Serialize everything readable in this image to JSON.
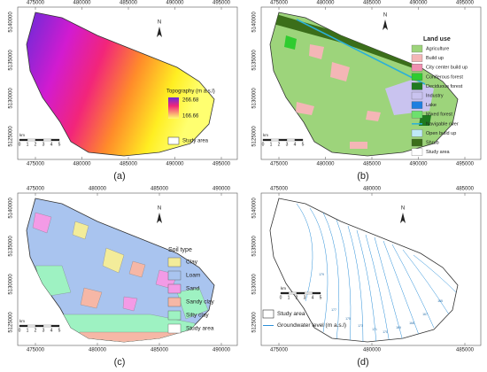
{
  "panels": [
    {
      "label": "(a)",
      "top_ticks": [
        "475000",
        "480000",
        "485000",
        "490000",
        "495000"
      ],
      "bottom_ticks": [
        "475000",
        "480000",
        "485000",
        "490000",
        "495000"
      ],
      "left_ticks": [
        "5140000",
        "5135000",
        "5130000",
        "5125000"
      ],
      "north": "N",
      "scale_unit": "km",
      "scale_labels": [
        "0",
        "1",
        "2",
        "3",
        "4",
        "5"
      ],
      "legend": {
        "title": "Topography (m a.s.l)",
        "max": "266.68",
        "min": "166.66",
        "items": [
          {
            "label": "Study area",
            "color": "#ffffff"
          }
        ]
      }
    },
    {
      "label": "(b)",
      "top_ticks": [
        "475000",
        "480000",
        "485000",
        "490000",
        "495000"
      ],
      "bottom_ticks": [
        "475000",
        "480000",
        "485000",
        "490000",
        "495000"
      ],
      "left_ticks": [
        "5140000",
        "5135000",
        "5130000",
        "5125000"
      ],
      "north": "N",
      "scale_unit": "km",
      "scale_labels": [
        "0",
        "1",
        "2",
        "3",
        "4",
        "5"
      ],
      "legend": {
        "title": "Land use",
        "items": [
          {
            "label": "Agriculture",
            "color": "#9dd47b"
          },
          {
            "label": "Build up",
            "color": "#f4b6b6"
          },
          {
            "label": "City center build up",
            "color": "#f08fb0"
          },
          {
            "label": "Coniferous forest",
            "color": "#2fcc2f"
          },
          {
            "label": "Deciduous forest",
            "color": "#1f7a1f"
          },
          {
            "label": "Industry",
            "color": "#c9c3ef"
          },
          {
            "label": "Lake",
            "color": "#1e7fe0"
          },
          {
            "label": "Mixed forest",
            "color": "#6ee06e"
          },
          {
            "label": "Navigable river",
            "color": "#2bb0d8"
          },
          {
            "label": "Open build up",
            "color": "#bfe9f7"
          },
          {
            "label": "Shrub",
            "color": "#3b6e1a"
          },
          {
            "label": "Study area",
            "color": "#ffffff"
          }
        ]
      }
    },
    {
      "label": "(c)",
      "top_ticks": [
        "475000",
        "480000",
        "485000",
        "490000"
      ],
      "bottom_ticks": [
        "475000",
        "480000",
        "485000",
        "490000"
      ],
      "left_ticks": [
        "5140000",
        "5135000",
        "5130000",
        "5125000"
      ],
      "north": "N",
      "scale_unit": "km",
      "scale_labels": [
        "0",
        "1",
        "2",
        "3",
        "4",
        "5"
      ],
      "legend": {
        "title": "Soil type",
        "items": [
          {
            "label": "Clay",
            "color": "#f3ec9a"
          },
          {
            "label": "Loam",
            "color": "#a9c4ef"
          },
          {
            "label": "Sand",
            "color": "#f39be6"
          },
          {
            "label": "Sandy clay",
            "color": "#f6b7a6"
          },
          {
            "label": "Silty clay",
            "color": "#9ef2c2"
          },
          {
            "label": "Study area",
            "color": "#ffffff"
          }
        ]
      }
    },
    {
      "label": "(d)",
      "top_ticks": [
        "475000",
        "480000",
        "485000"
      ],
      "bottom_ticks": [
        "475000",
        "480000",
        "485000"
      ],
      "left_ticks": [
        "5140000",
        "5135000",
        "5130000",
        "5125000"
      ],
      "north": "N",
      "scale_unit": "km",
      "scale_labels": [
        "0",
        "1",
        "2",
        "3",
        "4",
        "5"
      ],
      "legend": {
        "items": [
          {
            "label": "Study area",
            "color": "#ffffff"
          },
          {
            "label": "Groundwater level (m a.s.l)",
            "color": "#2b8fd8"
          }
        ]
      },
      "contour_labels": [
        "179",
        "177",
        "175",
        "173",
        "171",
        "170",
        "169",
        "168",
        "167",
        "165"
      ]
    }
  ]
}
